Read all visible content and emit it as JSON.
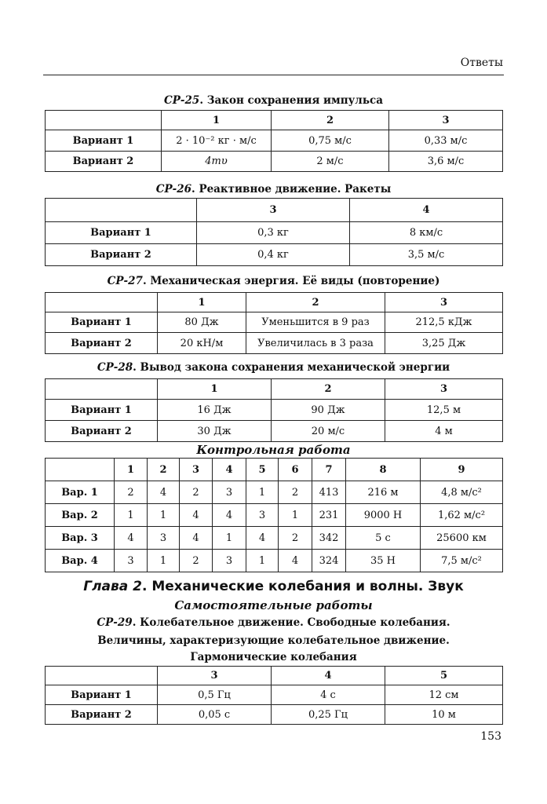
{
  "running_head": "Ответы",
  "page_number": "153",
  "sections": [
    {
      "id_label": "СР-25",
      "title": ". Закон сохранения импульса",
      "columns": [
        "",
        "1",
        "2",
        "3"
      ],
      "rows": [
        [
          "Вариант 1",
          "2 · 10⁻² кг · м/с",
          "0,75 м/с",
          "0,33 м/с"
        ],
        [
          "Вариант 2",
          "4mυ",
          "2 м/с",
          "3,6 м/с"
        ]
      ]
    },
    {
      "id_label": "СР-26",
      "title": ". Реактивное движение. Ракеты",
      "columns": [
        "",
        "3",
        "4"
      ],
      "rows": [
        [
          "Вариант 1",
          "0,3 кг",
          "8 км/с"
        ],
        [
          "Вариант 2",
          "0,4 кг",
          "3,5 м/с"
        ]
      ]
    },
    {
      "id_label": "СР-27",
      "title": ". Механическая энергия. Её виды (повторение)",
      "columns": [
        "",
        "1",
        "2",
        "3"
      ],
      "rows": [
        [
          "Вариант 1",
          "80 Дж",
          "Уменьшится в 9 раз",
          "212,5 кДж"
        ],
        [
          "Вариант 2",
          "20 кН/м",
          "Увеличилась в 3 раза",
          "3,25 Дж"
        ]
      ]
    },
    {
      "id_label": "СР-28",
      "title": ". Вывод закона сохранения механической энергии",
      "columns": [
        "",
        "1",
        "2",
        "3"
      ],
      "rows": [
        [
          "Вариант 1",
          "16 Дж",
          "90 Дж",
          "12,5 м"
        ],
        [
          "Вариант 2",
          "30 Дж",
          "20 м/с",
          "4 м"
        ]
      ]
    }
  ],
  "control_work": {
    "title": "Контрольная работа",
    "columns": [
      "",
      "1",
      "2",
      "3",
      "4",
      "5",
      "6",
      "7",
      "8",
      "9"
    ],
    "rows": [
      [
        "Вар. 1",
        "2",
        "4",
        "2",
        "3",
        "1",
        "2",
        "413",
        "216 м",
        "4,8 м/с²"
      ],
      [
        "Вар. 2",
        "1",
        "1",
        "4",
        "4",
        "3",
        "1",
        "231",
        "9000 Н",
        "1,62 м/с²"
      ],
      [
        "Вар. 3",
        "4",
        "3",
        "4",
        "1",
        "4",
        "2",
        "342",
        "5 с",
        "25600 км"
      ],
      [
        "Вар. 4",
        "3",
        "1",
        "2",
        "3",
        "1",
        "4",
        "324",
        "35 Н",
        "7,5 м/с²"
      ]
    ]
  },
  "chapter": {
    "label": "Глава 2",
    "title": ". Механические колебания и волны. Звук",
    "subtitle": "Самостоятельные работы",
    "sr29_label": "СР-29",
    "sr29_line1": ". Колебательное движение. Свободные колебания.",
    "sr29_line2": "Величины, характеризующие колебательное движение.",
    "sr29_line3": "Гармонические колебания",
    "columns": [
      "",
      "3",
      "4",
      "5"
    ],
    "rows": [
      [
        "Вариант 1",
        "0,5 Гц",
        "4 с",
        "12 см"
      ],
      [
        "Вариант 2",
        "0,05 с",
        "0,25 Гц",
        "10 м"
      ]
    ]
  }
}
